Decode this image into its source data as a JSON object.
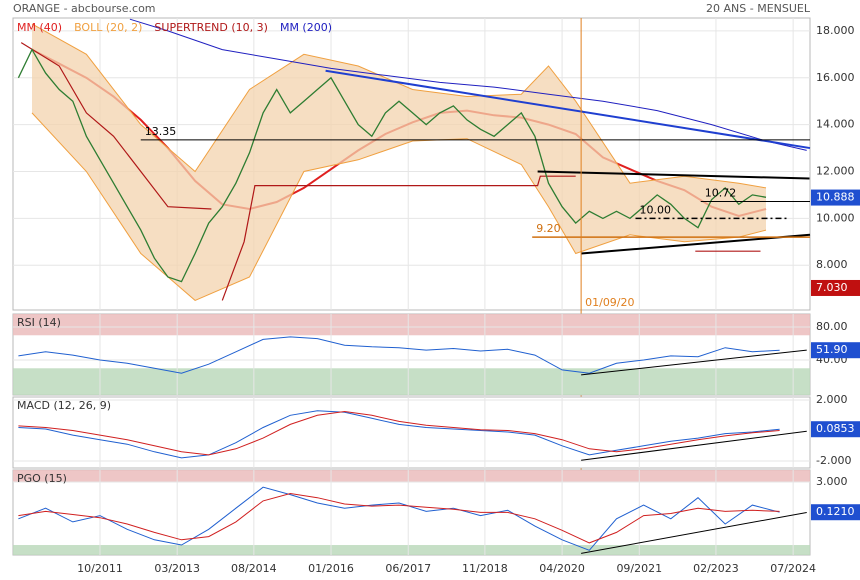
{
  "header": {
    "title": "ORANGE - abcbourse.com",
    "period": "20 ANS - MENSUEL"
  },
  "chart_data": [
    {
      "type": "line",
      "xlim": [
        2010.15,
        2024.81
      ],
      "ylim": [
        6.09,
        18.55
      ],
      "grid": true,
      "yticks": [
        {
          "value": 18,
          "label": "18.000"
        },
        {
          "value": 16,
          "label": "16.000"
        },
        {
          "value": 14,
          "label": "14.000"
        },
        {
          "value": 12,
          "label": "12.000"
        },
        {
          "value": 10,
          "label": "10.000"
        },
        {
          "value": 8,
          "label": "8.000"
        }
      ],
      "series": [
        {
          "name": "MM (40)",
          "color": "#e02020",
          "width": 2,
          "x": [
            2010.5,
            2011.0,
            2011.5,
            2012.0,
            2012.5,
            2013.0,
            2013.5,
            2014.0,
            2014.5,
            2015.0,
            2015.5,
            2016.0,
            2016.5,
            2017.0,
            2017.5,
            2018.0,
            2018.5,
            2019.0,
            2019.5,
            2020.0,
            2020.5,
            2021.0,
            2021.5,
            2022.0,
            2022.5,
            2023.0,
            2023.5,
            2024.0
          ],
          "values": [
            17.2,
            16.6,
            16.0,
            15.2,
            14.2,
            13.0,
            11.6,
            10.6,
            10.4,
            10.7,
            11.3,
            12.1,
            12.9,
            13.6,
            14.1,
            14.5,
            14.6,
            14.4,
            14.3,
            14.0,
            13.6,
            12.6,
            12.1,
            11.6,
            11.2,
            10.5,
            10.1,
            10.4
          ]
        },
        {
          "name": "BOLL (20, 2)",
          "color": "#f0a040",
          "x": [
            2010.5,
            2011.5,
            2012.5,
            2013.5,
            2014.5,
            2015.5,
            2016.5,
            2017.5,
            2018.5,
            2019.5,
            2020.0,
            2020.5,
            2021.5,
            2022.5,
            2023.5,
            2024.0
          ],
          "upper": [
            18.3,
            17.0,
            14.0,
            12.0,
            15.5,
            17.0,
            16.5,
            15.5,
            15.2,
            15.3,
            16.5,
            15.0,
            11.5,
            11.8,
            11.5,
            11.3
          ],
          "lower": [
            14.5,
            12.0,
            8.5,
            6.5,
            7.5,
            12.0,
            12.5,
            13.3,
            13.4,
            12.3,
            10.5,
            8.5,
            9.3,
            9.0,
            9.2,
            9.5
          ]
        },
        {
          "name": "SUPERTREND (10, 3)",
          "color": "#b01818",
          "width": 1.2,
          "x": [
            2010.3,
            2011.0,
            2011.5,
            2012.0,
            2012.5,
            2013.0,
            2013.8,
            2013.9,
            2014.0,
            2014.4,
            2014.6,
            2019.8,
            2019.85,
            2020.5,
            2021.0,
            2022.7,
            2023.9
          ],
          "values": [
            17.5,
            16.5,
            14.5,
            13.5,
            12.0,
            10.5,
            10.4,
            null,
            6.5,
            9.0,
            11.4,
            11.4,
            11.8,
            11.8,
            null,
            8.6,
            8.6
          ]
        },
        {
          "name": "MM (200)",
          "color": "#2020c0",
          "width": 1,
          "x": [
            2012.3,
            2013.0,
            2014.0,
            2015.0,
            2016.0,
            2017.0,
            2018.0,
            2019.0,
            2020.0,
            2021.0,
            2022.0,
            2023.0,
            2024.0,
            2024.75
          ],
          "values": [
            18.5,
            18.0,
            17.2,
            16.8,
            16.4,
            16.1,
            15.8,
            15.6,
            15.3,
            15.0,
            14.6,
            14.0,
            13.3,
            12.9
          ]
        },
        {
          "color": "#2e7d32",
          "width": 1.3,
          "x": [
            2010.25,
            2010.5,
            2010.75,
            2011.0,
            2011.25,
            2011.5,
            2011.75,
            2012.0,
            2012.25,
            2012.5,
            2012.75,
            2013.0,
            2013.25,
            2013.5,
            2013.75,
            2014.0,
            2014.25,
            2014.5,
            2014.75,
            2015.0,
            2015.25,
            2015.5,
            2015.75,
            2016.0,
            2016.25,
            2016.5,
            2016.75,
            2017.0,
            2017.25,
            2017.5,
            2017.75,
            2018.0,
            2018.25,
            2018.5,
            2018.75,
            2019.0,
            2019.25,
            2019.5,
            2019.75,
            2020.0,
            2020.25,
            2020.5,
            2020.75,
            2021.0,
            2021.25,
            2021.5,
            2021.75,
            2022.0,
            2022.25,
            2022.5,
            2022.75,
            2023.0,
            2023.25,
            2023.5,
            2023.75,
            2024.0
          ],
          "values": [
            16.0,
            17.2,
            16.2,
            15.5,
            15.0,
            13.5,
            12.5,
            11.5,
            10.5,
            9.5,
            8.3,
            7.5,
            7.3,
            8.5,
            9.8,
            10.5,
            11.5,
            12.8,
            14.5,
            15.5,
            14.5,
            15.0,
            15.5,
            16.0,
            15.0,
            14.0,
            13.5,
            14.5,
            15.0,
            14.5,
            14.0,
            14.5,
            14.8,
            14.2,
            13.8,
            13.5,
            14.0,
            14.5,
            13.5,
            11.5,
            10.5,
            9.8,
            10.3,
            10.0,
            10.3,
            10.0,
            10.5,
            11.0,
            10.6,
            10.0,
            9.6,
            10.8,
            11.3,
            10.6,
            11.0,
            10.9
          ]
        }
      ],
      "lines": [
        {
          "x": [
            2015.9,
            2024.81
          ],
          "y": [
            16.3,
            13.0
          ],
          "color": "#1f3fd0",
          "width": 2
        },
        {
          "x": [
            2012.5,
            2024.81
          ],
          "y": [
            13.35,
            13.35
          ],
          "color": "#000000",
          "width": 1,
          "label": "13.35"
        },
        {
          "x": [
            2019.8,
            2024.8
          ],
          "y": [
            12.0,
            11.7
          ],
          "color": "#000000",
          "width": 2
        },
        {
          "x": [
            2020.6,
            2024.81
          ],
          "y": [
            8.5,
            9.3
          ],
          "color": "#000000",
          "width": 2
        },
        {
          "x": [
            2021.6,
            2024.4
          ],
          "y": [
            10.0,
            10.0
          ],
          "color": "#000000",
          "width": 1.5,
          "dash": "6 3 2 3",
          "label": "10.00"
        },
        {
          "x": [
            2022.8,
            2024.81
          ],
          "y": [
            10.72,
            10.72
          ],
          "color": "#000000",
          "width": 1,
          "label": "10.72"
        },
        {
          "x": [
            2019.7,
            2024.81
          ],
          "y": [
            9.2,
            9.2
          ],
          "color": "#d07010",
          "width": 1.5,
          "label": "9.20"
        },
        {
          "x": [
            2020.6,
            2020.6
          ],
          "y": [
            6.09,
            18.55
          ],
          "color": "#e08020",
          "width": 1,
          "label": "01/09/20"
        }
      ],
      "last_values": [
        {
          "value": 10.888,
          "color": "#1f4fd0"
        },
        {
          "value": 7.03,
          "label": "7.030",
          "color": "#c01010"
        }
      ]
    },
    {
      "type": "line",
      "title": "RSI (14)",
      "xlim": [
        2010.15,
        2024.81
      ],
      "ylim": [
        -2.4,
        95.8
      ],
      "grid": true,
      "yticks": [
        {
          "value": 80,
          "label": "80.00"
        },
        {
          "value": 40,
          "label": "40.00"
        }
      ],
      "zones": [
        {
          "from": 70,
          "to": 95.8,
          "color": "#ebbcbc"
        },
        {
          "from": -2.4,
          "to": 30,
          "color": "#bcd9bc"
        }
      ],
      "series": [
        {
          "color": "#2060d0",
          "width": 1,
          "x": [
            2010.25,
            2010.75,
            2011.25,
            2011.75,
            2012.25,
            2012.75,
            2013.25,
            2013.75,
            2014.25,
            2014.75,
            2015.25,
            2015.75,
            2016.25,
            2016.75,
            2017.25,
            2017.75,
            2018.25,
            2018.75,
            2019.25,
            2019.75,
            2020.25,
            2020.75,
            2021.25,
            2021.75,
            2022.25,
            2022.75,
            2023.25,
            2023.75,
            2024.25
          ],
          "values": [
            45,
            50,
            46,
            40,
            36,
            30,
            24,
            35,
            50,
            65,
            68,
            66,
            58,
            56,
            55,
            52,
            54,
            51,
            53,
            46,
            28,
            24,
            36,
            40,
            45,
            44,
            55,
            50,
            51.9
          ]
        }
      ],
      "lines": [
        {
          "x": [
            2020.6,
            2024.75
          ],
          "y": [
            22,
            52
          ],
          "color": "#000000",
          "width": 1
        }
      ],
      "last_values": [
        {
          "value": 51.9,
          "label": "51.90",
          "color": "#1f4fd0"
        }
      ]
    },
    {
      "type": "line",
      "title": "MACD (12, 26, 9)",
      "xlim": [
        2010.15,
        2024.81
      ],
      "ylim": [
        -2.46,
        2.2
      ],
      "grid": true,
      "yticks": [
        {
          "value": 2,
          "label": "2.000"
        },
        {
          "value": -2,
          "label": "-2.000"
        }
      ],
      "series": [
        {
          "color": "#2060d0",
          "width": 1,
          "x": [
            2010.25,
            2010.75,
            2011.25,
            2011.75,
            2012.25,
            2012.75,
            2013.25,
            2013.75,
            2014.25,
            2014.75,
            2015.25,
            2015.75,
            2016.25,
            2016.75,
            2017.25,
            2017.75,
            2018.25,
            2018.75,
            2019.25,
            2019.75,
            2020.25,
            2020.75,
            2021.25,
            2021.75,
            2022.25,
            2022.75,
            2023.25,
            2023.75,
            2024.25
          ],
          "values": [
            0.2,
            0.1,
            -0.3,
            -0.6,
            -0.9,
            -1.4,
            -1.8,
            -1.6,
            -0.8,
            0.2,
            1.0,
            1.3,
            1.2,
            0.8,
            0.4,
            0.2,
            0.1,
            0,
            -0.1,
            -0.3,
            -1.0,
            -1.6,
            -1.3,
            -1.0,
            -0.7,
            -0.5,
            -0.2,
            -0.1,
            0.0853
          ]
        },
        {
          "color": "#d02020",
          "width": 1,
          "x": [
            2010.25,
            2010.75,
            2011.25,
            2011.75,
            2012.25,
            2012.75,
            2013.25,
            2013.75,
            2014.25,
            2014.75,
            2015.25,
            2015.75,
            2016.25,
            2016.75,
            2017.25,
            2017.75,
            2018.25,
            2018.75,
            2019.25,
            2019.75,
            2020.25,
            2020.75,
            2021.25,
            2021.75,
            2022.25,
            2022.75,
            2023.25,
            2023.75,
            2024.25
          ],
          "values": [
            0.3,
            0.2,
            0,
            -0.3,
            -0.6,
            -1.0,
            -1.4,
            -1.6,
            -1.2,
            -0.5,
            0.4,
            1.0,
            1.25,
            1.0,
            0.6,
            0.35,
            0.2,
            0.05,
            0,
            -0.2,
            -0.6,
            -1.2,
            -1.4,
            -1.2,
            -0.9,
            -0.6,
            -0.35,
            -0.15,
            0.0
          ]
        }
      ],
      "lines": [
        {
          "x": [
            2020.6,
            2024.75
          ],
          "y": [
            -1.95,
            -0.05
          ],
          "color": "#000000",
          "width": 1
        }
      ],
      "last_values": [
        {
          "value": 0.0853,
          "color": "#1f4fd0"
        }
      ]
    },
    {
      "type": "line",
      "title": "PGO (15)",
      "xlim": [
        2010.15,
        2024.81
      ],
      "ylim": [
        -3.95,
        4.14
      ],
      "grid": true,
      "yticks": [
        {
          "value": 3,
          "label": "3.000"
        }
      ],
      "xticks": [
        {
          "value": 2011.75,
          "label": "10/2011"
        },
        {
          "value": 2013.17,
          "label": "03/2013"
        },
        {
          "value": 2014.58,
          "label": "08/2014"
        },
        {
          "value": 2016.0,
          "label": "01/2016"
        },
        {
          "value": 2017.42,
          "label": "06/2017"
        },
        {
          "value": 2018.83,
          "label": "11/2018"
        },
        {
          "value": 2020.25,
          "label": "04/2020"
        },
        {
          "value": 2021.67,
          "label": "09/2021"
        },
        {
          "value": 2023.08,
          "label": "02/2023"
        },
        {
          "value": 2024.5,
          "label": "07/2024"
        }
      ],
      "zones": [
        {
          "from": 3,
          "to": 4.14,
          "color": "#ebbcbc"
        },
        {
          "from": -3.95,
          "to": -3,
          "color": "#bcd9bc"
        }
      ],
      "series": [
        {
          "color": "#2060d0",
          "width": 1,
          "x": [
            2010.25,
            2010.75,
            2011.25,
            2011.75,
            2012.25,
            2012.75,
            2013.25,
            2013.75,
            2014.25,
            2014.75,
            2015.25,
            2015.75,
            2016.25,
            2016.75,
            2017.25,
            2017.75,
            2018.25,
            2018.75,
            2019.25,
            2019.75,
            2020.25,
            2020.75,
            2021.25,
            2021.75,
            2022.25,
            2022.75,
            2023.25,
            2023.75,
            2024.25
          ],
          "values": [
            -0.5,
            0.5,
            -0.8,
            -0.2,
            -1.5,
            -2.5,
            -3.0,
            -1.5,
            0.5,
            2.5,
            1.8,
            1.0,
            0.5,
            0.8,
            1.0,
            0.2,
            0.5,
            -0.2,
            0.3,
            -1.2,
            -2.5,
            -3.5,
            -0.5,
            0.8,
            -0.5,
            1.5,
            -1.0,
            0.8,
            0.121
          ]
        },
        {
          "color": "#d02020",
          "width": 1,
          "x": [
            2010.25,
            2010.75,
            2011.25,
            2011.75,
            2012.25,
            2012.75,
            2013.25,
            2013.75,
            2014.25,
            2014.75,
            2015.25,
            2015.75,
            2016.25,
            2016.75,
            2017.25,
            2017.75,
            2018.25,
            2018.75,
            2019.25,
            2019.75,
            2020.25,
            2020.75,
            2021.25,
            2021.75,
            2022.25,
            2022.75,
            2023.25,
            2023.75,
            2024.25
          ],
          "values": [
            -0.2,
            0.2,
            -0.1,
            -0.4,
            -1.0,
            -1.8,
            -2.5,
            -2.2,
            -0.8,
            1.2,
            1.9,
            1.5,
            0.9,
            0.7,
            0.8,
            0.6,
            0.4,
            0.1,
            0.1,
            -0.5,
            -1.6,
            -2.8,
            -1.8,
            -0.2,
            0.0,
            0.5,
            0.2,
            0.3,
            0.2
          ]
        }
      ],
      "lines": [
        {
          "x": [
            2020.6,
            2024.75
          ],
          "y": [
            -3.8,
            0.1
          ],
          "color": "#000000",
          "width": 1
        }
      ],
      "last_values": [
        {
          "value": 0.121,
          "label": "0.1210",
          "color": "#1f4fd0"
        }
      ]
    }
  ]
}
